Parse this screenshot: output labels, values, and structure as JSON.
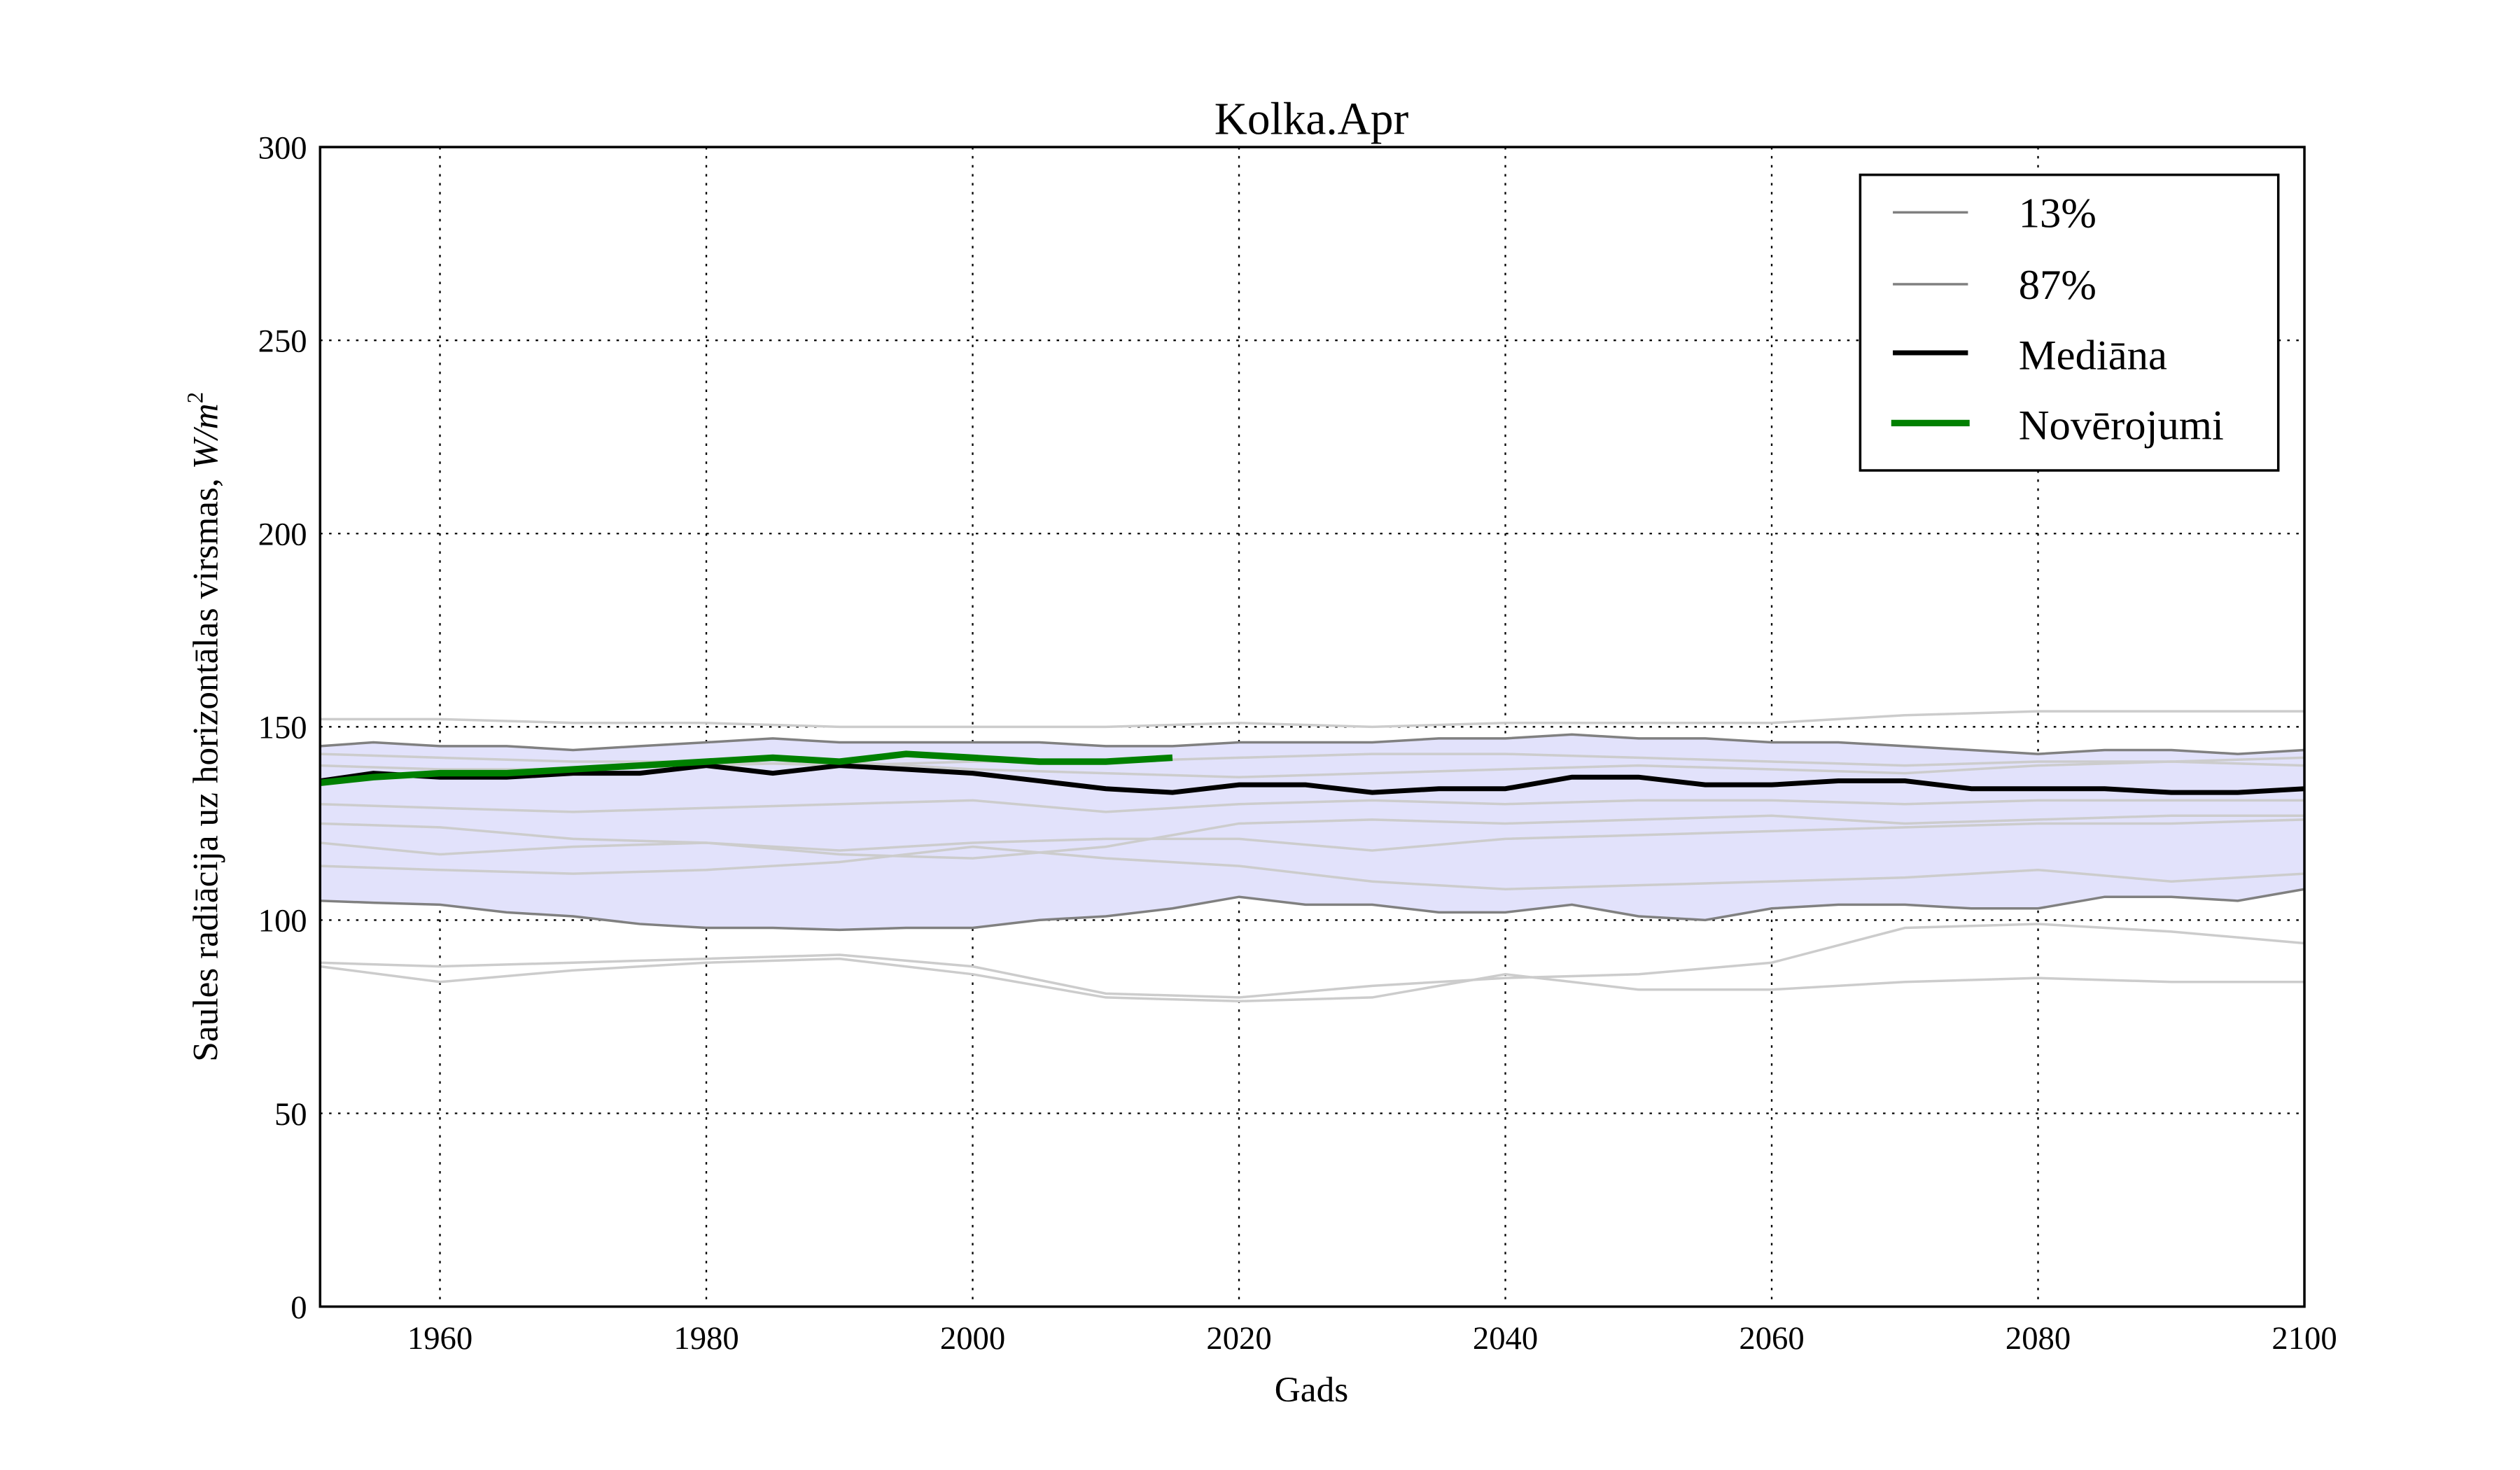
{
  "chart_data": {
    "type": "line",
    "title": "Kolka.Apr",
    "xlabel": "Gads",
    "ylabel": "Saules radiācija uz horizontālas virsmas, ",
    "ylabel_math": "W/m",
    "ylabel_sup": "2",
    "xlim": [
      1951,
      2100
    ],
    "ylim": [
      0,
      300
    ],
    "xticks": [
      1960,
      1980,
      2000,
      2020,
      2040,
      2060,
      2080,
      2100
    ],
    "yticks": [
      0,
      50,
      100,
      150,
      200,
      250,
      300
    ],
    "grid": true,
    "legend_position": "top-right",
    "legend": [
      "13%",
      "87%",
      "Mediāna",
      "Novērojumi"
    ],
    "colors": {
      "band": "#e2e2fb",
      "percentile": "#808080",
      "median": "#000000",
      "observations": "#008000",
      "ensemble": "#cccccc"
    },
    "years_coarse": [
      1951,
      1960,
      1970,
      1980,
      1990,
      2000,
      2010,
      2020,
      2030,
      2040,
      2050,
      2060,
      2070,
      2080,
      2090,
      2100
    ],
    "ensemble": [
      [
        152,
        152,
        151,
        151,
        150,
        150,
        150,
        151,
        150,
        151,
        151,
        151,
        153,
        154,
        154,
        154
      ],
      [
        89,
        88,
        89,
        90,
        91,
        88,
        81,
        80,
        83,
        85,
        86,
        89,
        98,
        99,
        97,
        94
      ],
      [
        88,
        84,
        87,
        89,
        90,
        86,
        80,
        79,
        80,
        86,
        82,
        82,
        84,
        85,
        84,
        84
      ],
      [
        125,
        124,
        121,
        120,
        117,
        116,
        119,
        125,
        126,
        125,
        126,
        127,
        125,
        126,
        127,
        127
      ],
      [
        114,
        113,
        112,
        113,
        115,
        119,
        116,
        114,
        110,
        108,
        109,
        110,
        111,
        113,
        110,
        112
      ],
      [
        120,
        117,
        119,
        120,
        118,
        120,
        121,
        121,
        118,
        121,
        122,
        123,
        124,
        125,
        125,
        126
      ],
      [
        130,
        129,
        128,
        129,
        130,
        131,
        128,
        130,
        131,
        130,
        131,
        131,
        130,
        131,
        131,
        131
      ],
      [
        143,
        142,
        141,
        141,
        140,
        141,
        141,
        142,
        143,
        143,
        142,
        141,
        140,
        141,
        141,
        142
      ],
      [
        140,
        139,
        139,
        140,
        141,
        139,
        138,
        137,
        138,
        139,
        140,
        139,
        138,
        140,
        141,
        140
      ]
    ],
    "years": [
      1951,
      1955,
      1960,
      1965,
      1970,
      1975,
      1980,
      1985,
      1990,
      1995,
      2000,
      2005,
      2010,
      2015,
      2020,
      2025,
      2030,
      2035,
      2040,
      2045,
      2050,
      2055,
      2060,
      2065,
      2070,
      2075,
      2080,
      2085,
      2090,
      2095,
      2100
    ],
    "series": [
      {
        "name": "13%",
        "values": [
          105,
          104.5,
          104,
          102,
          101,
          99,
          98,
          98,
          97.5,
          98,
          98,
          100,
          101,
          103,
          106,
          104,
          104,
          102,
          102,
          104,
          101,
          100,
          103,
          104,
          104,
          103,
          103,
          106,
          106,
          105,
          108
        ]
      },
      {
        "name": "87%",
        "values": [
          145,
          146,
          145,
          145,
          144,
          145,
          146,
          147,
          146,
          146,
          146,
          146,
          145,
          145,
          146,
          146,
          146,
          147,
          147,
          148,
          147,
          147,
          146,
          146,
          145,
          144,
          143,
          144,
          144,
          143,
          144
        ]
      },
      {
        "name": "Mediāna",
        "values": [
          136,
          138,
          137,
          137,
          138,
          138,
          140,
          138,
          140,
          139,
          138,
          136,
          134,
          133,
          135,
          135,
          133,
          134,
          134,
          137,
          137,
          135,
          135,
          136,
          136,
          134,
          134,
          134,
          133,
          133,
          134
        ]
      },
      {
        "name": "Novērojumi",
        "years": [
          1951,
          1955,
          1960,
          1965,
          1970,
          1975,
          1980,
          1985,
          1990,
          1995,
          2000,
          2005,
          2010,
          2015
        ],
        "values": [
          135.5,
          137,
          138,
          138,
          139,
          140,
          141,
          142,
          141,
          143,
          142,
          141,
          141,
          142
        ]
      }
    ]
  }
}
